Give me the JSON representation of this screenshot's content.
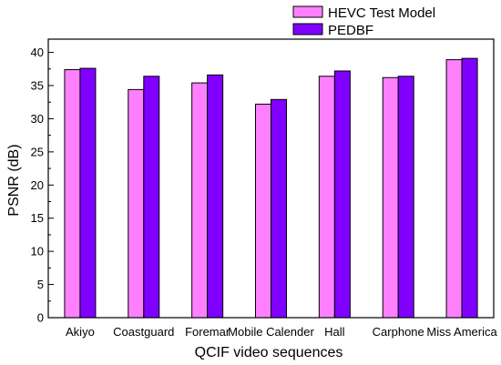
{
  "chart_data": {
    "type": "bar",
    "xlabel": "QCIF video sequences",
    "ylabel": "PSNR (dB)",
    "ylim": [
      0,
      42
    ],
    "yticks": [
      0,
      5,
      10,
      15,
      20,
      25,
      30,
      35,
      40
    ],
    "grid": false,
    "legend_position": "top-right",
    "categories": [
      "Akiyo",
      "Coastguard",
      "Foremar",
      "Mobile Calender",
      "Hall",
      "Carphone",
      "Miss America"
    ],
    "series": [
      {
        "name": "HEVC Test Model",
        "color": "#ff80ff",
        "values": [
          37.4,
          34.4,
          35.4,
          32.2,
          36.4,
          36.2,
          38.9
        ]
      },
      {
        "name": "PEDBF",
        "color": "#8000ff",
        "values": [
          37.6,
          36.4,
          36.6,
          32.9,
          37.2,
          36.4,
          39.1
        ]
      }
    ]
  }
}
